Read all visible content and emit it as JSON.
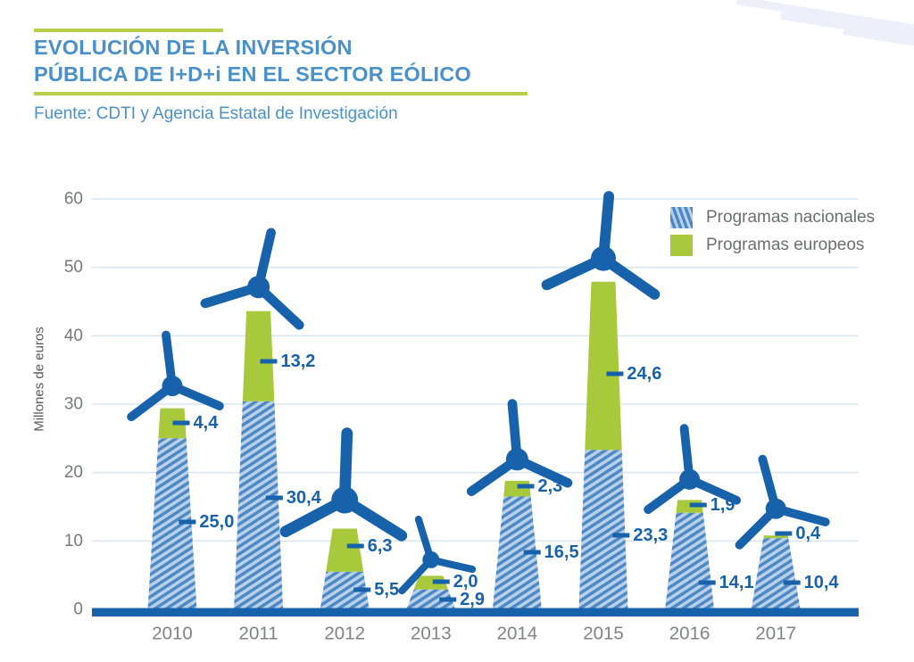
{
  "header": {
    "title_line1": "EVOLUCIÓN DE LA INVERSIÓN",
    "title_line2": "PÚBLICA DE I+D+i EN EL SECTOR EÓLICO",
    "source": "Fuente: CDTI y Agencia Estatal de Investigación"
  },
  "legend": {
    "items": [
      {
        "label": "Programas nacionales",
        "style": "hatched-blue"
      },
      {
        "label": "Programas europeos",
        "style": "solid-green"
      }
    ]
  },
  "colors": {
    "dark_blue": "#1762aa",
    "title_blue": "#4a91c9",
    "accent_green": "#b7cf4b",
    "green": "#a9c93c",
    "hatch_bg": "#b9d0ea",
    "hatch_stripe": "#4d87c4",
    "grid": "#d7e5f3",
    "tick_text": "#77787b",
    "year_text": "#808285",
    "axis_title": "#58595b",
    "legend_text": "#6d6e71",
    "deco_stripe": "#edf0f9"
  },
  "chart_data": {
    "type": "bar",
    "stacked": true,
    "title": "EVOLUCIÓN DE LA INVERSIÓN PÚBLICA DE I+D+i EN EL SECTOR EÓLICO",
    "subtitle": "Fuente: CDTI y Agencia Estatal de Investigación",
    "categories": [
      "2010",
      "2011",
      "2012",
      "2013",
      "2014",
      "2015",
      "2016",
      "2017"
    ],
    "series": [
      {
        "name": "Programas nacionales",
        "values": [
          25.0,
          30.4,
          5.5,
          2.9,
          16.5,
          23.3,
          14.1,
          10.4
        ],
        "labels": [
          "25,0",
          "30,4",
          "5,5",
          "2,9",
          "16,5",
          "23,3",
          "14,1",
          "10,4"
        ]
      },
      {
        "name": "Programas europeos",
        "values": [
          4.4,
          13.2,
          6.3,
          2.0,
          2.3,
          24.6,
          1.9,
          0.4
        ],
        "labels": [
          "4,4",
          "13,2",
          "6,3",
          "2,0",
          "2,3",
          "24,6",
          "1,9",
          "0,4"
        ]
      }
    ],
    "xlabel": "",
    "ylabel": "Millones de euros",
    "ylim": [
      0,
      60
    ],
    "yticks": [
      0,
      10,
      20,
      30,
      40,
      50,
      60
    ],
    "grid": true,
    "legend_position": "top-right"
  }
}
